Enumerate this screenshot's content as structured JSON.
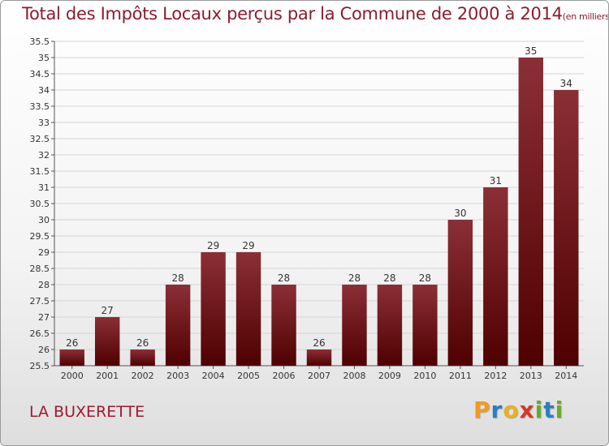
{
  "title": "Total des Impôts Locaux perçus par la Commune de 2000 à 2014",
  "title_unit": "(en milliers d'€)",
  "commune": "LA BUXERETTE",
  "logo": {
    "text": "Proxiti",
    "letters": [
      {
        "ch": "P",
        "color": "#f29a1f"
      },
      {
        "ch": "r",
        "color": "#2a7fc1"
      },
      {
        "ch": "o",
        "color": "#e8b21c"
      },
      {
        "ch": "x",
        "color": "#d23a2a"
      },
      {
        "ch": "i",
        "color": "#6aaa2a"
      },
      {
        "ch": "t",
        "color": "#2a7fc1"
      },
      {
        "ch": "i",
        "color": "#6aaa2a"
      }
    ]
  },
  "colors": {
    "bar_top": "#8b2f37",
    "bar_bottom": "#4f0000",
    "grid": "#d5d5d5",
    "title": "#8c1c30"
  },
  "chart_data": {
    "type": "bar",
    "categories": [
      "2000",
      "2001",
      "2002",
      "2003",
      "2004",
      "2005",
      "2006",
      "2007",
      "2008",
      "2009",
      "2010",
      "2011",
      "2012",
      "2013",
      "2014"
    ],
    "values": [
      26,
      27,
      26,
      28,
      29,
      29,
      28,
      26,
      28,
      28,
      28,
      30,
      31,
      35,
      34
    ],
    "data_labels": [
      "26",
      "27",
      "26",
      "28",
      "29",
      "29",
      "28",
      "26",
      "28",
      "28",
      "28",
      "30",
      "31",
      "35",
      "34"
    ],
    "ylim": [
      25.5,
      35.5
    ],
    "ytick_step": 0.5,
    "yticks": [
      "25.5",
      "26",
      "26.5",
      "27",
      "27.5",
      "28",
      "28.5",
      "29",
      "29.5",
      "30",
      "30.5",
      "31",
      "31.5",
      "32",
      "32.5",
      "33",
      "33.5",
      "34",
      "34.5",
      "35",
      "35.5"
    ],
    "grid": true,
    "legend": "none"
  }
}
